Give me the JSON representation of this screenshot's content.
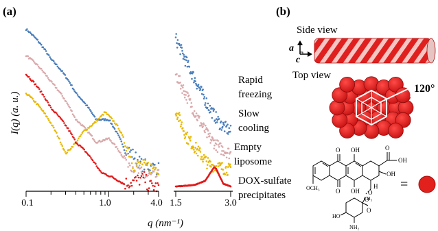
{
  "panel_a": {
    "label": "(a)",
    "ylabel": "I(q) (a. u.)",
    "xlabel": "q (nm⁻¹)",
    "left_ticks": [
      "0.1",
      "1.0",
      "4.0"
    ],
    "right_ticks": [
      "1.5",
      "3.0"
    ],
    "legend": [
      "Rapid freezing",
      "Slow cooling",
      "Empty liposome",
      "DOX-sulfate precipitates"
    ]
  },
  "panel_b": {
    "label": "(b)",
    "side_view": "Side view",
    "top_view": "Top view",
    "axis_a": "a",
    "axis_c": "c",
    "angle": "120°",
    "chem_labels": [
      "O",
      "OH",
      "O",
      "OH",
      "OH",
      "OCH₃",
      "O",
      "OH",
      "O",
      "H",
      "O",
      "O",
      "HO",
      "NH₂",
      "CH₃"
    ],
    "equals": "="
  },
  "colors": {
    "rapid_freezing": "#4a7ebb",
    "slow_cooling": "#d9a9ab",
    "empty_liposome": "#e8b800",
    "dox_sulfate": "#e21a1a",
    "rod": "#e0201f"
  },
  "chart_data": [
    {
      "type": "scatter",
      "x_scale": "log",
      "xlim": [
        0.1,
        4.0
      ],
      "ylabel": "I(q) (a. u.)",
      "xlabel": "q (nm⁻¹)",
      "series": [
        {
          "name": "Rapid freezing",
          "x": [
            0.1,
            0.2,
            0.4,
            0.7,
            1.0,
            1.5,
            2.5,
            4.0
          ],
          "y": [
            4.3,
            3.5,
            2.6,
            1.9,
            1.9,
            1.2,
            0.7,
            0.6
          ]
        },
        {
          "name": "Slow cooling",
          "x": [
            0.1,
            0.2,
            0.4,
            0.7,
            1.0,
            1.5,
            2.5,
            4.0
          ],
          "y": [
            3.6,
            2.9,
            1.9,
            1.3,
            1.4,
            0.9,
            0.4,
            0.4
          ]
        },
        {
          "name": "Empty liposome",
          "x": [
            0.1,
            0.2,
            0.3,
            0.5,
            0.9,
            1.3,
            2.0,
            4.0
          ],
          "y": [
            2.6,
            1.8,
            1.0,
            1.6,
            2.1,
            1.7,
            0.7,
            0.6
          ]
        },
        {
          "name": "DOX-sulfate precipitates",
          "x": [
            0.1,
            0.2,
            0.4,
            0.8,
            1.5,
            2.7,
            3.0,
            4.0
          ],
          "y": [
            3.1,
            2.2,
            1.3,
            0.5,
            0.2,
            0.35,
            0.15,
            0.1
          ]
        }
      ]
    },
    {
      "type": "scatter",
      "xlim": [
        1.5,
        3.0
      ],
      "series": [
        {
          "name": "Rapid freezing",
          "x": [
            1.5,
            1.8,
            2.1,
            2.4,
            2.7,
            3.0
          ],
          "y": [
            5.5,
            4.6,
            3.8,
            3.0,
            2.4,
            2.1
          ]
        },
        {
          "name": "Slow cooling",
          "x": [
            1.5,
            1.8,
            2.1,
            2.4,
            2.7,
            3.0
          ],
          "y": [
            4.2,
            3.4,
            2.6,
            1.9,
            1.5,
            1.3
          ]
        },
        {
          "name": "Empty liposome",
          "x": [
            1.5,
            1.8,
            2.1,
            2.4,
            2.7,
            3.0
          ],
          "y": [
            2.9,
            1.9,
            1.4,
            0.9,
            0.8,
            0.7
          ]
        },
        {
          "name": "DOX-sulfate precipitates",
          "x": [
            1.5,
            2.0,
            2.3,
            2.55,
            2.6,
            2.8,
            3.0
          ],
          "y": [
            0.1,
            0.15,
            0.3,
            0.8,
            0.75,
            0.2,
            0.1
          ]
        }
      ]
    }
  ]
}
